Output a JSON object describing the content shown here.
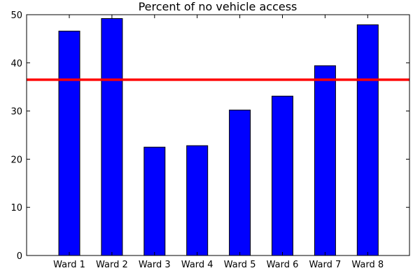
{
  "chart_data": {
    "type": "bar",
    "title": "Percent of no vehicle access",
    "xlabel": "",
    "ylabel": "",
    "categories": [
      "Ward 1",
      "Ward 2",
      "Ward 3",
      "Ward 4",
      "Ward 5",
      "Ward 6",
      "Ward 7",
      "Ward 8"
    ],
    "values": [
      46.6,
      49.2,
      22.5,
      22.8,
      30.2,
      33.1,
      39.4,
      47.9
    ],
    "ylim": [
      0,
      50
    ],
    "yticks": [
      0,
      10,
      20,
      30,
      40,
      50
    ],
    "reference_line": {
      "value": 36.5,
      "color": "#ff0000"
    },
    "bar_color": "#0000ff",
    "grid": false,
    "legend": "none"
  }
}
